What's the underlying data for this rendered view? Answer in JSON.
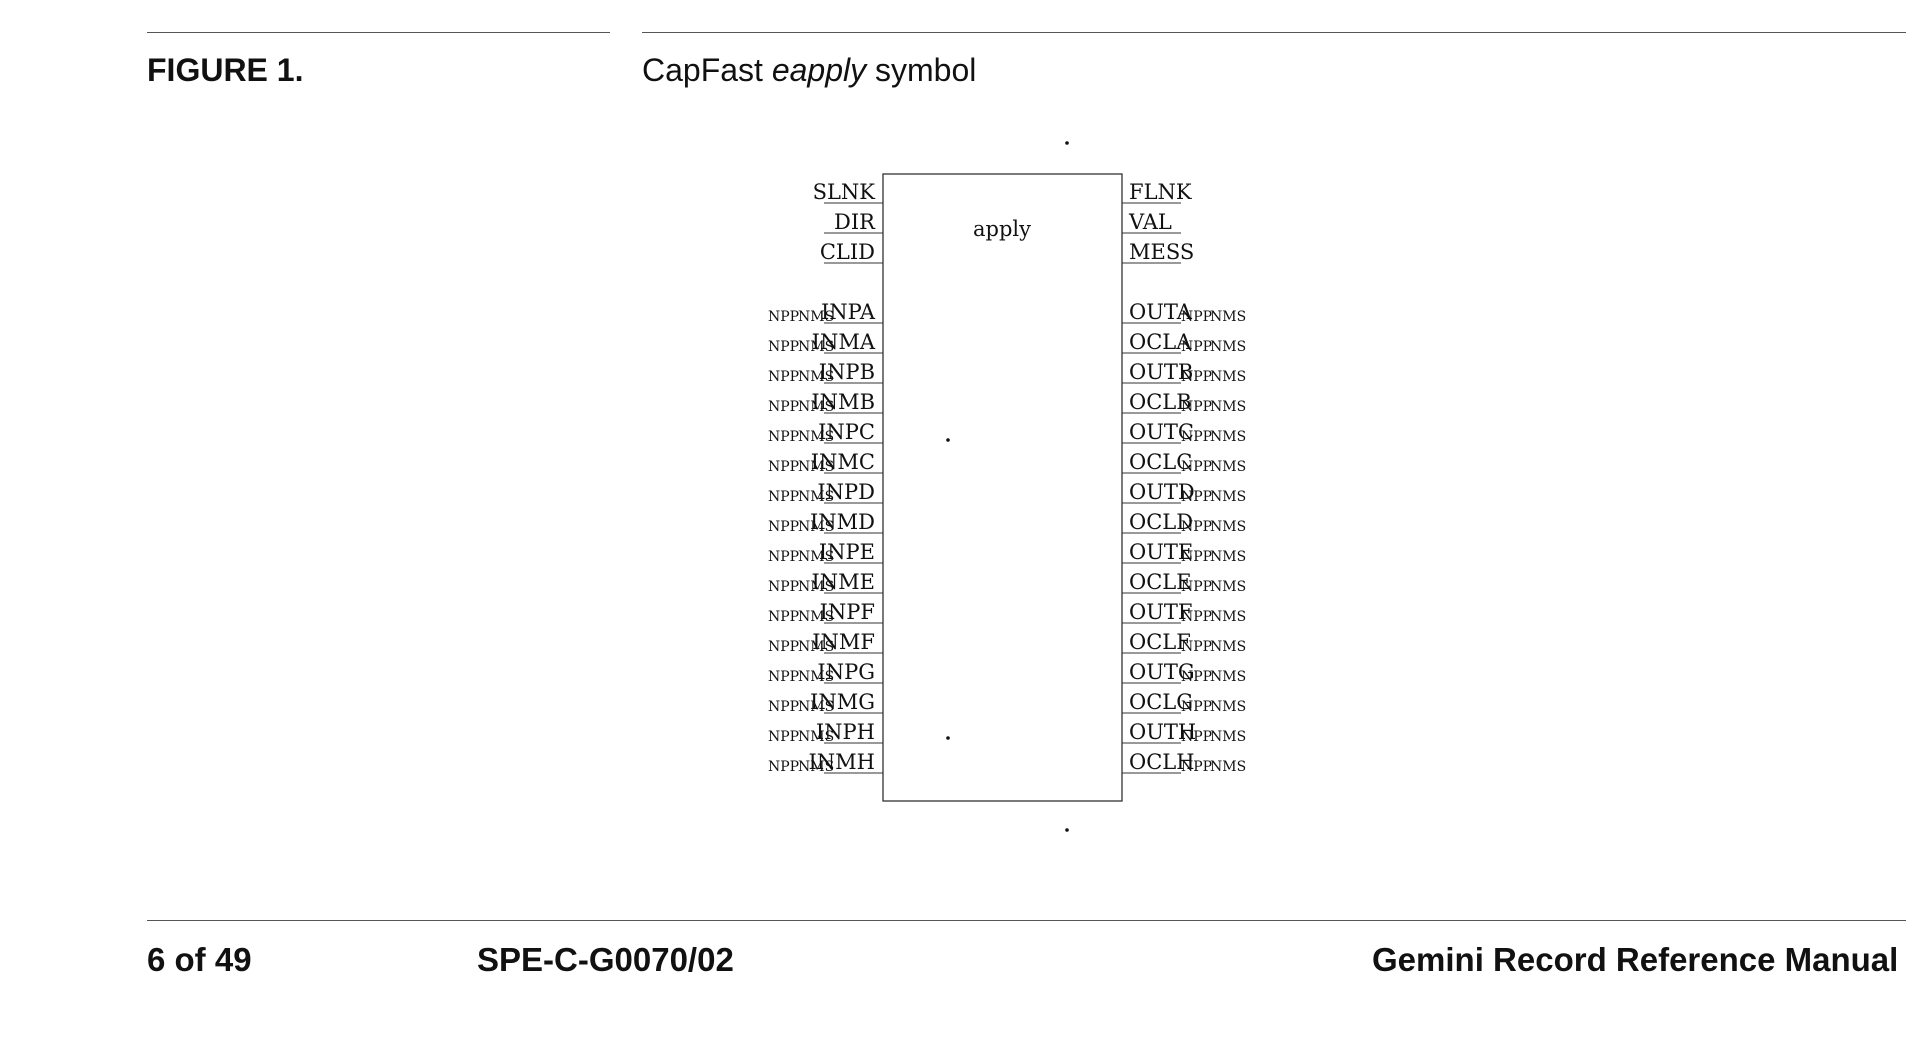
{
  "figure": {
    "label": "FIGURE 1.",
    "caption_prefix": "CapFast ",
    "caption_emph": "eapply",
    "caption_suffix": " symbol"
  },
  "symbol": {
    "name": "apply",
    "left_top_ports": [
      "SLNK",
      "DIR",
      "CLID"
    ],
    "right_top_ports": [
      "FLNK",
      "VAL",
      "MESS"
    ],
    "left_ports": [
      "INPA",
      "INMA",
      "INPB",
      "INMB",
      "INPC",
      "INMC",
      "INPD",
      "INMD",
      "INPE",
      "INME",
      "INPF",
      "INMF",
      "INPG",
      "INMG",
      "INPH",
      "INMH"
    ],
    "right_ports": [
      "OUTA",
      "OCLA",
      "OUTB",
      "OCLB",
      "OUTC",
      "OCLC",
      "OUTD",
      "OCLD",
      "OUTE",
      "OCLE",
      "OUTF",
      "OCLF",
      "OUTG",
      "OCLG",
      "OUTH",
      "OCLH"
    ],
    "link_attr_1": "NPP",
    "link_attr_2": "NMS"
  },
  "footer": {
    "page": "6 of 49",
    "doc_id": "SPE-C-G0070/02",
    "title": "Gemini Record Reference Manual"
  }
}
